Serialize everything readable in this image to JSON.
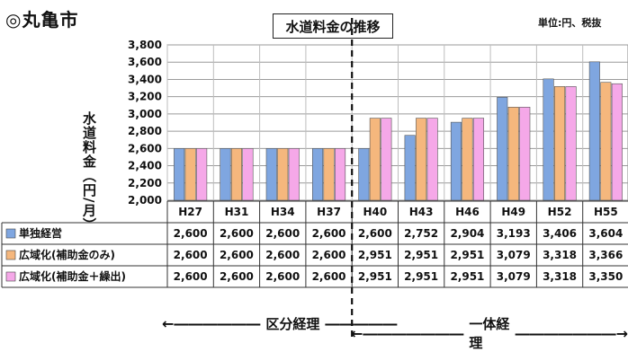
{
  "header": {
    "city": "◎丸亀市",
    "title": "水道料金の推移",
    "unit": "単位:円、税抜"
  },
  "chart_data": {
    "type": "bar",
    "ylabel": "水道料金（円/月）",
    "ylim": [
      2000,
      3800
    ],
    "yticks": [
      "2,000",
      "2,200",
      "2,400",
      "2,600",
      "2,800",
      "3,000",
      "3,200",
      "3,400",
      "3,600",
      "3,800"
    ],
    "grid": true,
    "categories": [
      "H27",
      "H31",
      "H34",
      "H37",
      "H40",
      "H43",
      "H46",
      "H49",
      "H52",
      "H55"
    ],
    "series": [
      {
        "name": "単独経営",
        "color": "#7fa6e0",
        "values": [
          2600,
          2600,
          2600,
          2600,
          2600,
          2752,
          2904,
          3193,
          3406,
          3604
        ],
        "labels": [
          "2,600",
          "2,600",
          "2,600",
          "2,600",
          "2,600",
          "2,752",
          "2,904",
          "3,193",
          "3,406",
          "3,604"
        ]
      },
      {
        "name": "広域化(補助金のみ)",
        "color": "#f5b77d",
        "values": [
          2600,
          2600,
          2600,
          2600,
          2951,
          2951,
          2951,
          3079,
          3318,
          3366
        ],
        "labels": [
          "2,600",
          "2,600",
          "2,600",
          "2,600",
          "2,951",
          "2,951",
          "2,951",
          "3,079",
          "3,318",
          "3,366"
        ]
      },
      {
        "name": "広域化(補助金＋繰出)",
        "color": "#f5a8e8",
        "values": [
          2600,
          2600,
          2600,
          2600,
          2951,
          2951,
          2951,
          3079,
          3318,
          3350
        ],
        "labels": [
          "2,600",
          "2,600",
          "2,600",
          "2,600",
          "2,951",
          "2,951",
          "2,951",
          "3,079",
          "3,318",
          "3,350"
        ]
      }
    ]
  },
  "footer": {
    "left": "区分経理",
    "right": "一体経理"
  }
}
